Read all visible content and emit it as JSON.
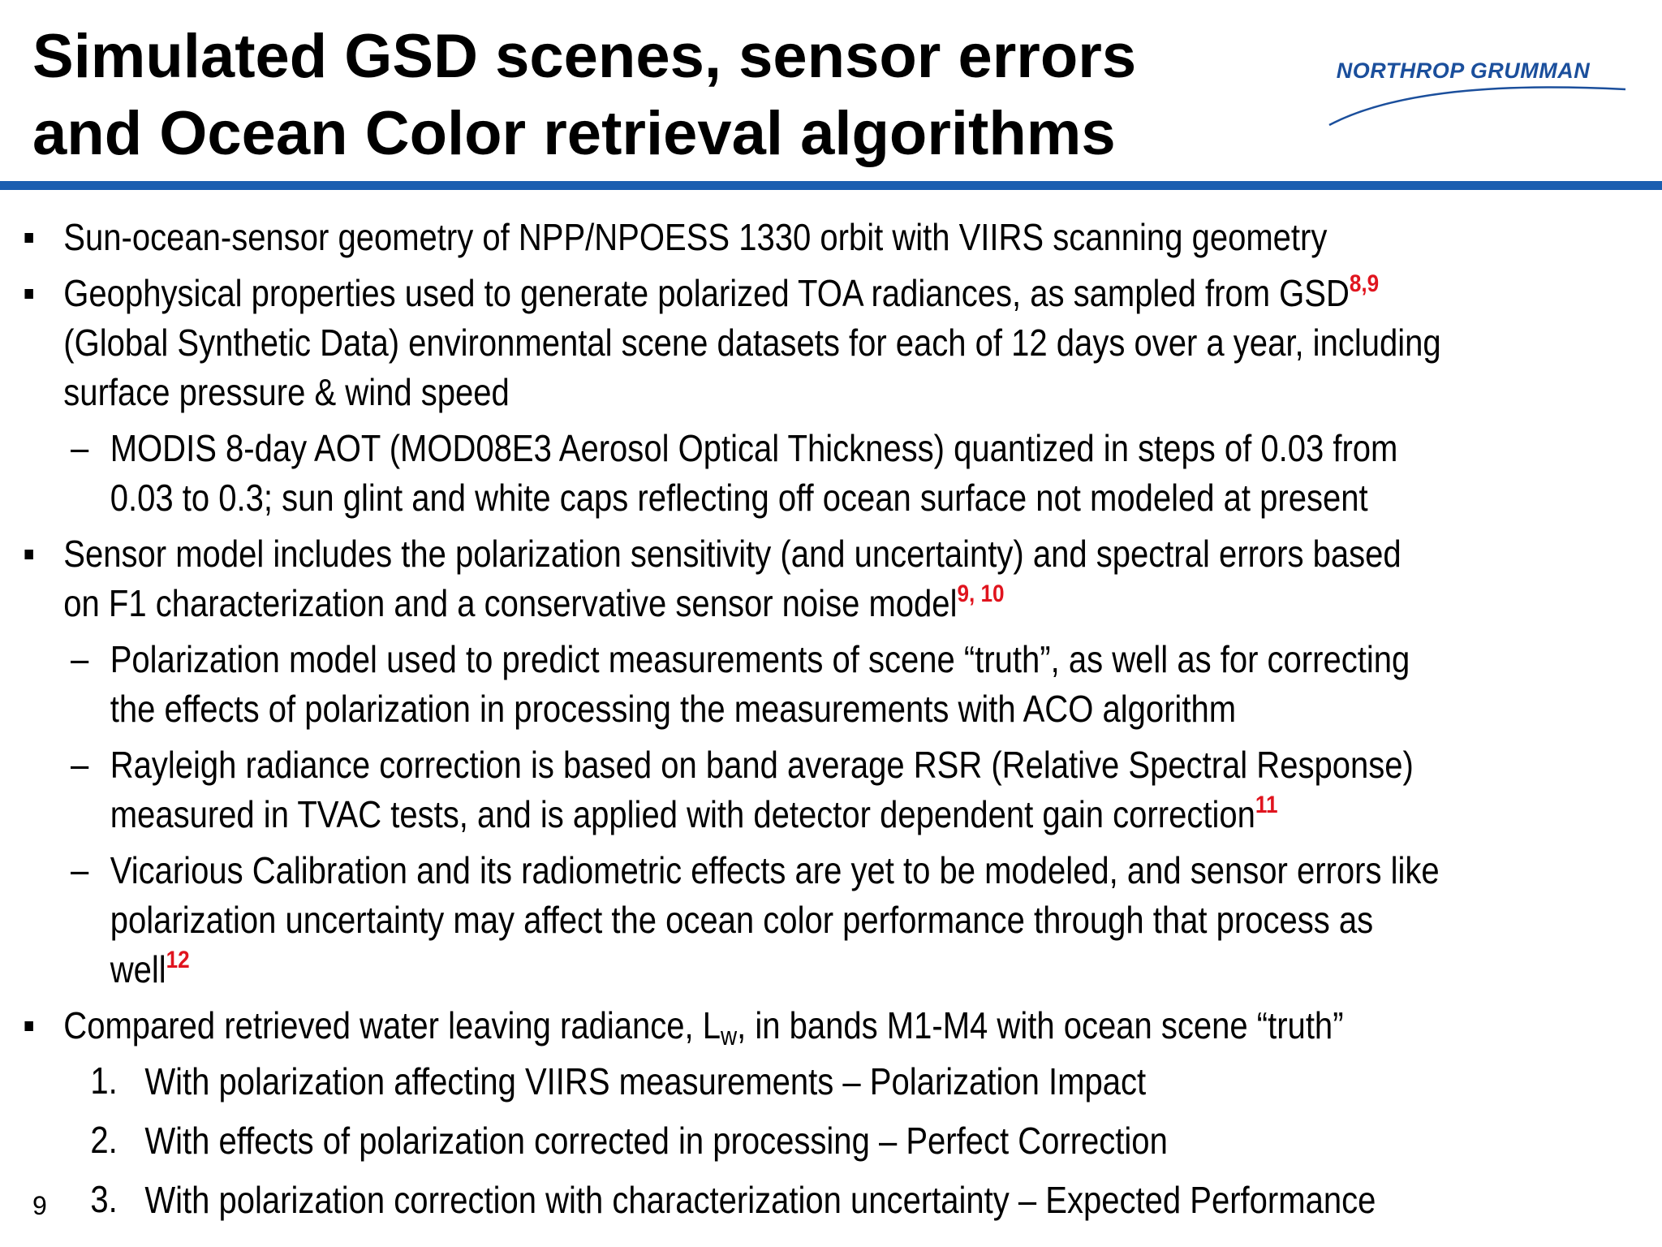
{
  "slide": {
    "title_line1": "Simulated GSD scenes, sensor errors",
    "title_line2": "and Ocean Color retrieval algorithms",
    "logo_text": "NORTHROP GRUMMAN",
    "page_number": "9",
    "colors": {
      "rule": "#1a5eb0",
      "logo": "#1b4f9c",
      "reference": "#e0141e"
    }
  },
  "bullets": {
    "b1": {
      "text": "Sun-ocean-sensor geometry of NPP/NPOESS 1330 orbit with VIIRS scanning geometry"
    },
    "b2": {
      "text_before": "Geophysical properties used to generate polarized TOA radiances, as sampled from GSD",
      "ref": "8,9",
      "text_after": " (Global Synthetic Data) environmental scene datasets for each of 12 days over a year, including surface pressure & wind speed",
      "sub1": {
        "marker": "–",
        "text": "MODIS 8-day AOT (MOD08E3 Aerosol Optical Thickness) quantized in steps of 0.03 from 0.03 to 0.3; sun glint and white caps reflecting off ocean surface not modeled at present"
      }
    },
    "b3": {
      "text": "Sensor model includes the polarization sensitivity (and uncertainty) and spectral errors based on F1 characterization and a conservative sensor noise model",
      "ref": "9, 10",
      "sub1": {
        "marker": "–",
        "text": "Polarization model used to predict measurements of scene “truth”, as well as for correcting the effects of polarization in processing the measurements with ACO algorithm"
      },
      "sub2": {
        "marker": "–",
        "text": "Rayleigh radiance correction is based on band average RSR (Relative Spectral Response) measured in TVAC tests, and is applied with detector dependent gain correction",
        "ref": "11"
      },
      "sub3": {
        "marker": "–",
        "text": "Vicarious Calibration and its radiometric effects are yet to be modeled, and sensor errors like polarization uncertainty may affect the ocean color performance through that process as well",
        "ref": "12"
      }
    },
    "b4": {
      "text_before": "Compared retrieved water leaving radiance, L",
      "subscript": "w",
      "text_after": ", in bands M1-M4 with ocean scene “truth”",
      "items": [
        {
          "number": "1.",
          "text": "With polarization affecting VIIRS measurements – Polarization Impact"
        },
        {
          "number": "2.",
          "text": "With effects of polarization corrected in processing – Perfect Correction"
        },
        {
          "number": "3.",
          "text": "With polarization correction with characterization uncertainty – Expected Performance"
        }
      ]
    }
  }
}
